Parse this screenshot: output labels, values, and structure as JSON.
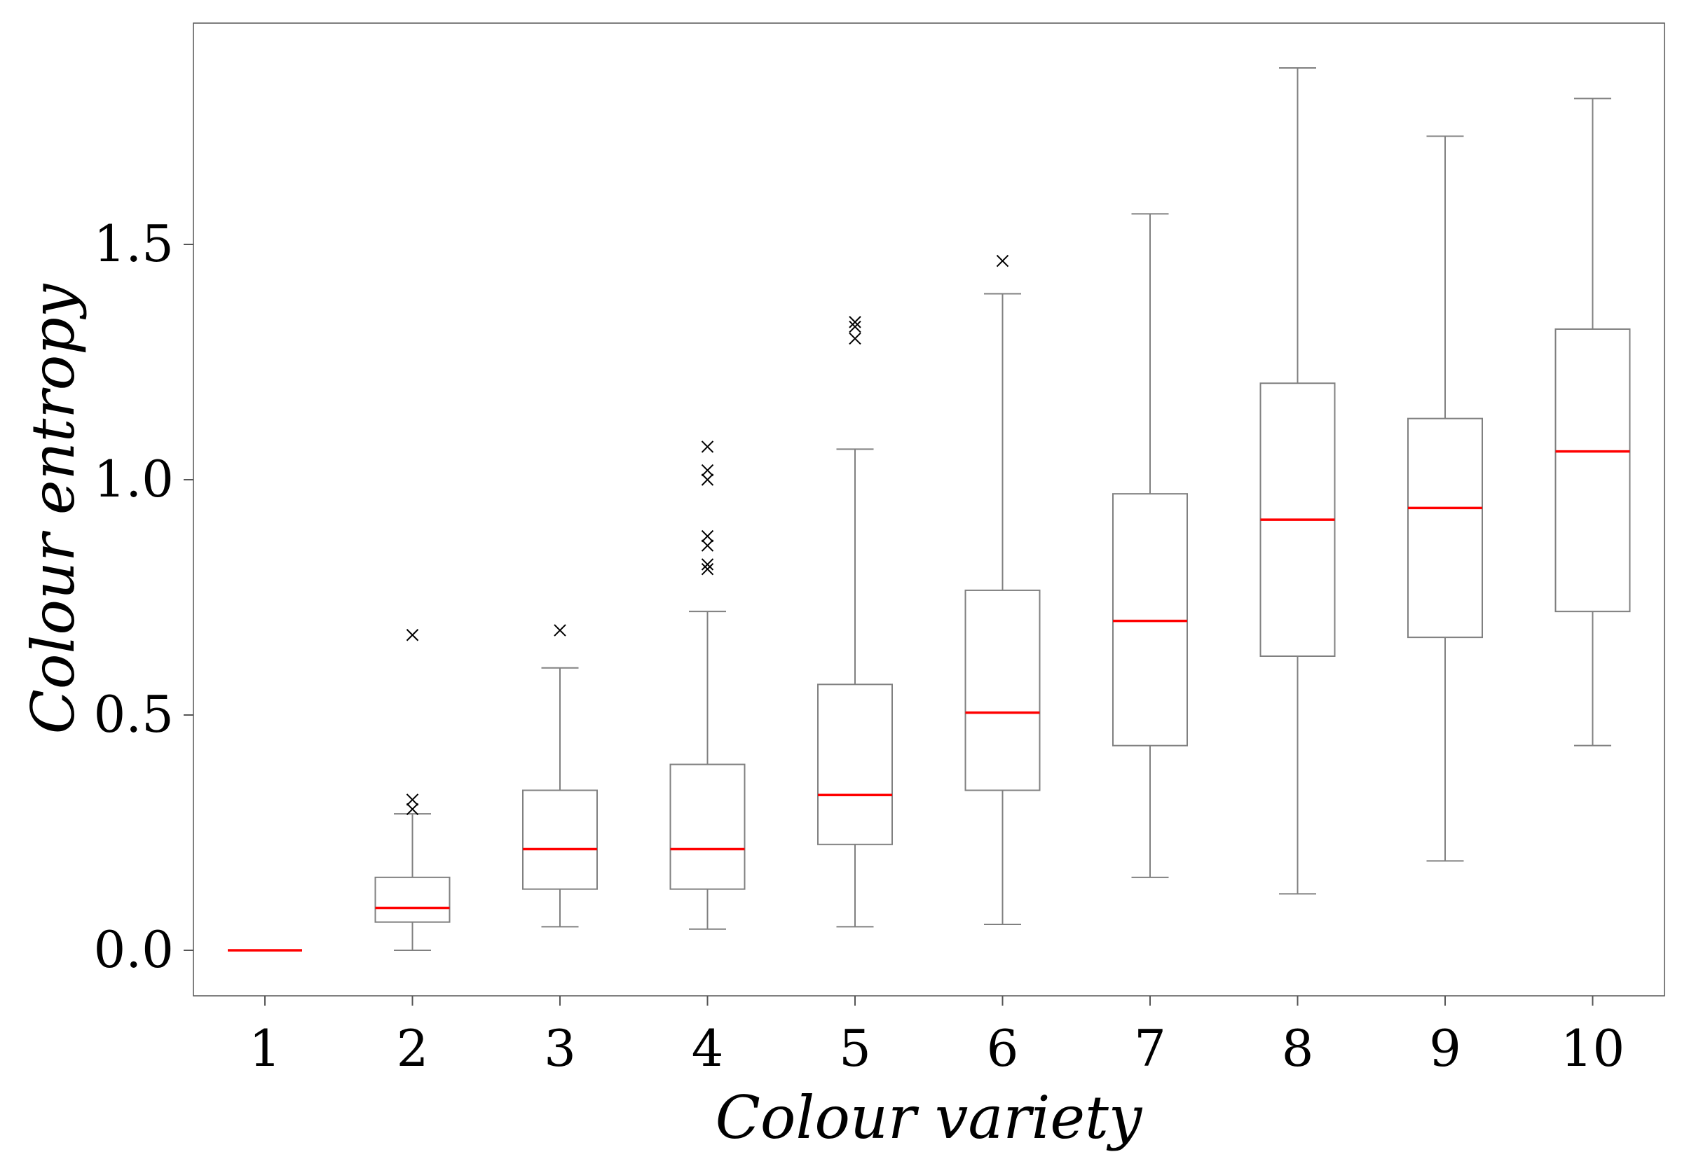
{
  "chart_data": {
    "type": "box",
    "title": "",
    "xlabel": "Colour variety",
    "ylabel": "Colour entropy",
    "ylim": [
      -0.09,
      1.98
    ],
    "yticks": [
      0.0,
      0.5,
      1.0,
      1.5
    ],
    "ytick_labels": [
      "0.0",
      "0.5",
      "1.0",
      "1.5"
    ],
    "grid": false,
    "legend": "none",
    "colors": {
      "box": "#808080",
      "median": "#ff0000",
      "outlier": "#000000"
    },
    "categories": [
      "1",
      "2",
      "3",
      "4",
      "5",
      "6",
      "7",
      "8",
      "9",
      "10"
    ],
    "boxes": [
      {
        "whisker_low": 0.0,
        "q1": 0.0,
        "median": 0.0,
        "q3": 0.0,
        "whisker_high": 0.0,
        "outliers": []
      },
      {
        "whisker_low": 0.0,
        "q1": 0.06,
        "median": 0.09,
        "q3": 0.155,
        "whisker_high": 0.29,
        "outliers": [
          0.3,
          0.32,
          0.67
        ]
      },
      {
        "whisker_low": 0.05,
        "q1": 0.13,
        "median": 0.215,
        "q3": 0.34,
        "whisker_high": 0.6,
        "outliers": [
          0.68
        ]
      },
      {
        "whisker_low": 0.045,
        "q1": 0.13,
        "median": 0.215,
        "q3": 0.395,
        "whisker_high": 0.72,
        "outliers": [
          0.81,
          0.82,
          0.86,
          0.88,
          1.0,
          1.02,
          1.07
        ]
      },
      {
        "whisker_low": 0.05,
        "q1": 0.225,
        "median": 0.33,
        "q3": 0.565,
        "whisker_high": 1.065,
        "outliers": [
          1.3,
          1.325,
          1.335
        ]
      },
      {
        "whisker_low": 0.055,
        "q1": 0.34,
        "median": 0.505,
        "q3": 0.765,
        "whisker_high": 1.395,
        "outliers": [
          1.465
        ]
      },
      {
        "whisker_low": 0.155,
        "q1": 0.435,
        "median": 0.7,
        "q3": 0.97,
        "whisker_high": 1.565,
        "outliers": []
      },
      {
        "whisker_low": 0.12,
        "q1": 0.625,
        "median": 0.915,
        "q3": 1.205,
        "whisker_high": 1.875,
        "outliers": []
      },
      {
        "whisker_low": 0.19,
        "q1": 0.665,
        "median": 0.94,
        "q3": 1.13,
        "whisker_high": 1.73,
        "outliers": []
      },
      {
        "whisker_low": 0.435,
        "q1": 0.72,
        "median": 1.06,
        "q3": 1.32,
        "whisker_high": 1.81,
        "outliers": []
      }
    ]
  }
}
